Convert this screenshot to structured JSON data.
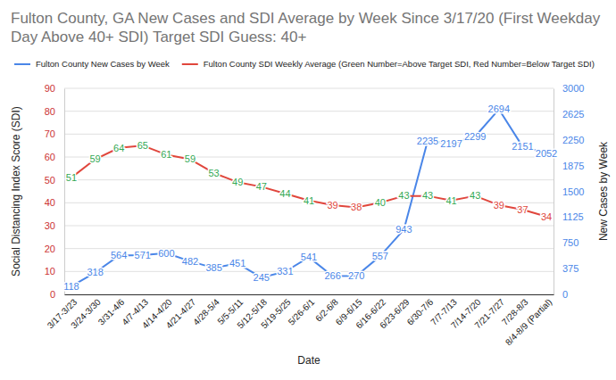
{
  "chart_data": {
    "type": "line",
    "title": "Fulton County, GA New Cases and SDI Average by Week Since 3/17/20 (First Weekday Day Above 40+ SDI) Target SDI Guess: 40+",
    "x_label": "Date",
    "y_label": "Social Distancing Index Score (SDI)",
    "y2_label": "New Cases by Week",
    "categories": [
      "3/17-3/23",
      "3/24-3/30",
      "3/31-4/6",
      "4/7-4/13",
      "4/14-4/20",
      "4/21-4/27",
      "4/28-5/4",
      "5/5-5/11",
      "5/12-5/18",
      "5/19-5/25",
      "5/26-6/1",
      "6/2-6/8",
      "6/9-6/15",
      "6/16-6/22",
      "6/23-6/29",
      "6/30-7/6",
      "7/7-7/13",
      "7/14-7/20",
      "7/21-7/27",
      "7/28-8/3",
      "8/4-8/9 (Partial)"
    ],
    "series": [
      {
        "name": "Fulton County New Cases by Week",
        "color": "#4a86e8",
        "axis": "y2",
        "values": [
          118,
          318,
          564,
          571,
          600,
          482,
          385,
          451,
          245,
          331,
          541,
          266,
          270,
          557,
          943,
          2235,
          2197,
          2299,
          2694,
          2151,
          2052
        ]
      },
      {
        "name": "Fulton County SDI Weekly Average (Green Number=Above Target SDI, Red Number=Below Target SDI)",
        "color": "#e0463c",
        "values": [
          51,
          59,
          64,
          65,
          61,
          59,
          53,
          49,
          47,
          44,
          41,
          39,
          38,
          40,
          43,
          43,
          41,
          43,
          39,
          37,
          34
        ],
        "colors": [
          "#34a853",
          "#34a853",
          "#34a853",
          "#34a853",
          "#34a853",
          "#34a853",
          "#34a853",
          "#34a853",
          "#34a853",
          "#34a853",
          "#34a853",
          "#e0463c",
          "#e0463c",
          "#34a853",
          "#34a853",
          "#34a853",
          "#34a853",
          "#34a853",
          "#e0463c",
          "#e0463c",
          "#e0463c"
        ]
      }
    ],
    "ylim": [
      0,
      90
    ],
    "yticks": [
      0,
      10,
      20,
      30,
      40,
      50,
      60,
      70,
      80,
      90
    ],
    "y2lim": [
      0,
      3000
    ],
    "y2ticks": [
      0,
      375,
      750,
      1125,
      1500,
      1875,
      2250,
      2625,
      3000
    ],
    "grid": true,
    "data_labels": true,
    "legend": "top-left"
  }
}
